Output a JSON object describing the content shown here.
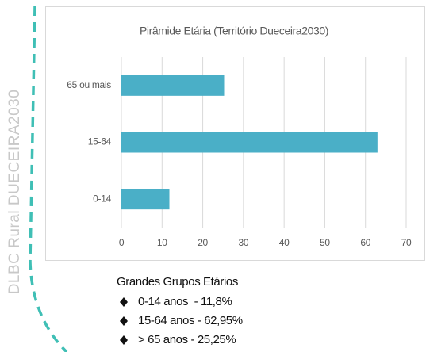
{
  "sidebar": {
    "text": "DLBC Rural DUECEIRA2030"
  },
  "chart_data": {
    "type": "bar",
    "orientation": "horizontal",
    "title": "Pirâmide Etária (Território Dueceira2030)",
    "categories": [
      "65 ou mais",
      "15-64",
      "0-14"
    ],
    "values": [
      25.25,
      62.95,
      11.8
    ],
    "color": "#4aafc7",
    "xlim": [
      0,
      70
    ],
    "xticks": [
      0,
      10,
      20,
      30,
      40,
      50,
      60,
      70
    ],
    "grid": true
  },
  "notes": {
    "title": "Grandes Grupos Etários",
    "items": [
      "0-14 anos  - 11,8%",
      "15-64 anos - 62,95%",
      "> 65 anos - 25,25%"
    ]
  }
}
